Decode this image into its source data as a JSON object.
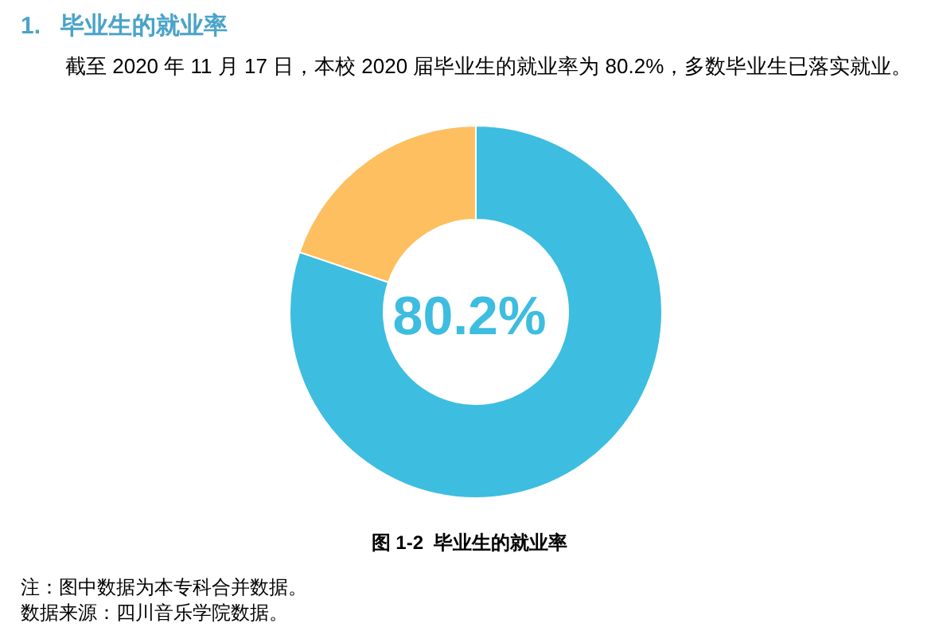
{
  "chart_data": {
    "type": "donut",
    "title": "1.   毕业生的就业率",
    "subtitle": "截至 2020 年 11 月 17 日，本校 2020 届毕业生的就业率为 80.2%，多数毕业生已落实就业。",
    "categories": [
      null,
      null
    ],
    "values": [
      80.2,
      19.8
    ],
    "colors": [
      "#3dbde0",
      "#fdbf5f"
    ],
    "annotations": [
      "80.2%",
      "图 1-2  毕业生的就业率",
      "注：图中数据为本专科合并数据。",
      "数据来源：四川音乐学院数据。"
    ]
  }
}
